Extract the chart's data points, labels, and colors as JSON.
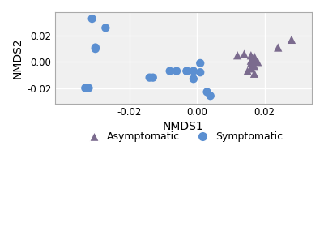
{
  "asymptomatic_x": [
    0.012,
    0.014,
    0.016,
    0.017,
    0.017,
    0.016,
    0.018,
    0.016,
    0.017,
    0.016,
    0.015,
    0.017,
    0.024,
    0.028
  ],
  "asymptomatic_y": [
    0.005,
    0.006,
    0.005,
    0.004,
    0.002,
    0.001,
    0.0,
    -0.001,
    -0.003,
    -0.005,
    -0.007,
    -0.009,
    0.011,
    0.017
  ],
  "symptomatic_x": [
    -0.031,
    -0.027,
    -0.03,
    -0.03,
    -0.032,
    -0.033,
    -0.014,
    -0.013,
    -0.008,
    -0.006,
    -0.003,
    -0.001,
    0.001,
    0.001,
    -0.001,
    0.003,
    0.004,
    -0.003
  ],
  "symptomatic_y": [
    0.033,
    0.026,
    0.011,
    0.01,
    -0.02,
    -0.02,
    -0.012,
    -0.012,
    -0.007,
    -0.007,
    -0.007,
    -0.007,
    -0.001,
    -0.008,
    -0.013,
    -0.023,
    -0.026,
    -0.007
  ],
  "asymptomatic_color": "#7b6b8e",
  "symptomatic_color": "#5b8fd1",
  "xlabel": "NMDS1",
  "ylabel": "NMDS2",
  "xlim": [
    -0.042,
    0.034
  ],
  "ylim": [
    -0.032,
    0.038
  ],
  "xticks": [
    -0.02,
    0.0,
    0.02
  ],
  "yticks": [
    -0.02,
    0.0,
    0.02
  ],
  "xtick_labels": [
    "-0.02",
    "0.00",
    "0.02"
  ],
  "ytick_labels": [
    "-0.02",
    "0.00",
    "0.02"
  ],
  "background_color": "#f0f0f0",
  "grid_color": "#ffffff",
  "marker_size": 55,
  "legend_asymptomatic": "Asymptomatic",
  "legend_symptomatic": "Symptomatic"
}
